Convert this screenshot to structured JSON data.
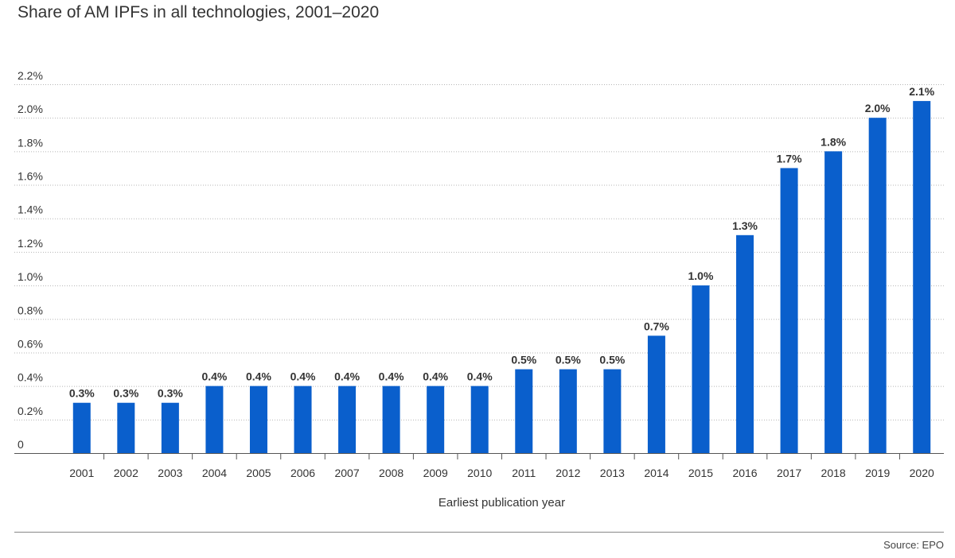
{
  "title": "Share of AM IPFs in all technologies, 2001–2020",
  "source": "Source: EPO",
  "colors": {
    "bar": "#0a5fcc",
    "grid": "#b5b5b5",
    "axis": "#555555",
    "text": "#333333"
  },
  "chart_data": {
    "type": "bar",
    "title": "Share of AM IPFs in all technologies, 2001–2020",
    "xlabel": "Earliest publication year",
    "ylabel": "",
    "ylim": [
      0,
      2.2
    ],
    "grid": true,
    "y_ticks": [
      0,
      0.2,
      0.4,
      0.6,
      0.8,
      1.0,
      1.2,
      1.4,
      1.6,
      1.8,
      2.0,
      2.2
    ],
    "y_tick_labels": [
      "0",
      "0.2%",
      "0.4%",
      "0.6%",
      "0.8%",
      "1.0%",
      "1.2%",
      "1.4%",
      "1.6%",
      "1.8%",
      "2.0%",
      "2.2%"
    ],
    "categories": [
      "2001",
      "2002",
      "2003",
      "2004",
      "2005",
      "2006",
      "2007",
      "2008",
      "2009",
      "2010",
      "2011",
      "2012",
      "2013",
      "2014",
      "2015",
      "2016",
      "2017",
      "2018",
      "2019",
      "2020"
    ],
    "values": [
      0.3,
      0.3,
      0.3,
      0.4,
      0.4,
      0.4,
      0.4,
      0.4,
      0.4,
      0.4,
      0.5,
      0.5,
      0.5,
      0.7,
      1.0,
      1.3,
      1.7,
      1.8,
      2.0,
      2.1
    ],
    "value_labels": [
      "0.3%",
      "0.3%",
      "0.3%",
      "0.4%",
      "0.4%",
      "0.4%",
      "0.4%",
      "0.4%",
      "0.4%",
      "0.4%",
      "0.5%",
      "0.5%",
      "0.5%",
      "0.7%",
      "1.0%",
      "1.3%",
      "1.7%",
      "1.8%",
      "2.0%",
      "2.1%"
    ]
  }
}
